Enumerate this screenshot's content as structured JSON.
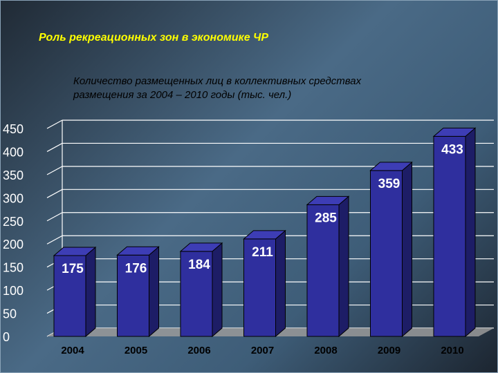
{
  "slide": {
    "title": "Роль  рекреационных зон в экономике ЧР"
  },
  "chart_data": {
    "type": "bar",
    "title_lines": [
      "Количество размещенных лиц в коллективных средствах",
      "размещения за 2004 – 2010 годы (тыс. чел.)"
    ],
    "categories": [
      "2004",
      "2005",
      "2006",
      "2007",
      "2008",
      "2009",
      "2010"
    ],
    "values": [
      175,
      176,
      184,
      211,
      285,
      359,
      433
    ],
    "data_labels": [
      "175",
      "176",
      "184",
      "211",
      "285",
      "359",
      "433"
    ],
    "y_ticks": [
      0,
      50,
      100,
      150,
      200,
      250,
      300,
      350,
      400,
      450
    ],
    "ylim": [
      0,
      450
    ],
    "grid": true,
    "legend": "none",
    "style": "3d-columns",
    "colors": {
      "bar_front": "#2f2f9e",
      "bar_side": "#1d1d66",
      "bar_top": "#3d3db5",
      "gridline": "#ffffff",
      "wall_bottom": "#9a9a9a"
    }
  }
}
